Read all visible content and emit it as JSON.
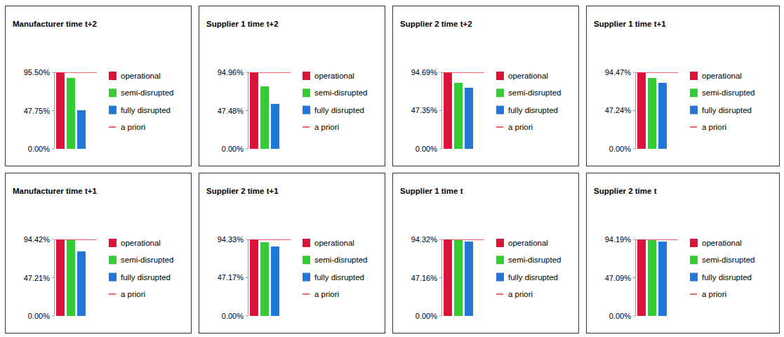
{
  "chart_data": [
    {
      "type": "bar",
      "title": "Manufacturer time t+2",
      "categories": [
        null
      ],
      "series": [
        {
          "name": "operational",
          "color": "#dc143c",
          "values": [
            95.5
          ]
        },
        {
          "name": "semi-disrupted",
          "color": "#33cc33",
          "values": [
            88.5
          ]
        },
        {
          "name": "fully disrupted",
          "color": "#1f78d6",
          "values": [
            48.2
          ]
        },
        {
          "name": "a priori",
          "color": "#e8333f",
          "type": "line",
          "line_style": "solid",
          "values": [
            95.5
          ]
        }
      ],
      "ylim": [
        0,
        95.5
      ],
      "yticks": [
        {
          "value": 0,
          "label": "0.00%"
        },
        {
          "value": 47.75,
          "label": "47.75%"
        },
        {
          "value": 95.5,
          "label": "95.50%"
        }
      ],
      "legend": "right",
      "tick_labels": "y"
    },
    {
      "type": "bar",
      "title": "Supplier 1  time t+2",
      "categories": [
        null
      ],
      "series": [
        {
          "name": "operational",
          "color": "#dc143c",
          "values": [
            94.96
          ]
        },
        {
          "name": "semi-disrupted",
          "color": "#33cc33",
          "values": [
            77.5
          ]
        },
        {
          "name": "fully disrupted",
          "color": "#1f78d6",
          "values": [
            55.8
          ]
        },
        {
          "name": "a priori",
          "color": "#e8333f",
          "type": "line",
          "line_style": "solid",
          "values": [
            94.96
          ]
        }
      ],
      "ylim": [
        0,
        94.96
      ],
      "yticks": [
        {
          "value": 0,
          "label": "0.00%"
        },
        {
          "value": 47.48,
          "label": "47.48%"
        },
        {
          "value": 94.96,
          "label": "94.96%"
        }
      ],
      "legend": "right",
      "tick_labels": "y"
    },
    {
      "type": "bar",
      "title": "Supplier 2  time t+2",
      "categories": [
        null
      ],
      "series": [
        {
          "name": "operational",
          "color": "#dc143c",
          "values": [
            94.69
          ]
        },
        {
          "name": "semi-disrupted",
          "color": "#33cc33",
          "values": [
            81.7
          ]
        },
        {
          "name": "fully disrupted",
          "color": "#1f78d6",
          "values": [
            75.6
          ]
        },
        {
          "name": "a priori",
          "color": "#e8333f",
          "type": "line",
          "line_style": "solid",
          "values": [
            94.69
          ]
        }
      ],
      "ylim": [
        0,
        94.69
      ],
      "yticks": [
        {
          "value": 0,
          "label": "0.00%"
        },
        {
          "value": 47.35,
          "label": "47.35%"
        },
        {
          "value": 94.69,
          "label": "94.69%"
        }
      ],
      "legend": "right",
      "tick_labels": "y"
    },
    {
      "type": "bar",
      "title": "Supplier 1  time t+1",
      "categories": [
        null
      ],
      "series": [
        {
          "name": "operational",
          "color": "#dc143c",
          "values": [
            94.47
          ]
        },
        {
          "name": "semi-disrupted",
          "color": "#33cc33",
          "values": [
            87.5
          ]
        },
        {
          "name": "fully disrupted",
          "color": "#1f78d6",
          "values": [
            81.5
          ]
        },
        {
          "name": "a priori",
          "color": "#e8333f",
          "type": "line",
          "line_style": "solid",
          "values": [
            94.47
          ]
        }
      ],
      "ylim": [
        0,
        94.47
      ],
      "yticks": [
        {
          "value": 0,
          "label": "0.00%"
        },
        {
          "value": 47.24,
          "label": "47.24%"
        },
        {
          "value": 94.47,
          "label": "94.47%"
        }
      ],
      "legend": "right",
      "tick_labels": "y"
    },
    {
      "type": "bar",
      "title": "Manufacturer time t+1",
      "categories": [
        null
      ],
      "series": [
        {
          "name": "operational",
          "color": "#dc143c",
          "values": [
            94.42
          ]
        },
        {
          "name": "semi-disrupted",
          "color": "#33cc33",
          "values": [
            94.0
          ]
        },
        {
          "name": "fully disrupted",
          "color": "#1f78d6",
          "values": [
            79.6
          ]
        },
        {
          "name": "a priori",
          "color": "#e8333f",
          "type": "line",
          "line_style": "solid",
          "values": [
            94.42
          ]
        }
      ],
      "ylim": [
        0,
        94.42
      ],
      "yticks": [
        {
          "value": 0,
          "label": "0.00%"
        },
        {
          "value": 47.21,
          "label": "47.21%"
        },
        {
          "value": 94.42,
          "label": "94.42%"
        }
      ],
      "legend": "right",
      "tick_labels": "y"
    },
    {
      "type": "bar",
      "title": "Supplier 2  time t+1",
      "categories": [
        null
      ],
      "series": [
        {
          "name": "operational",
          "color": "#dc143c",
          "values": [
            94.33
          ]
        },
        {
          "name": "semi-disrupted",
          "color": "#33cc33",
          "values": [
            90.8
          ]
        },
        {
          "name": "fully disrupted",
          "color": "#1f78d6",
          "values": [
            85.6
          ]
        },
        {
          "name": "a priori",
          "color": "#e8333f",
          "type": "line",
          "line_style": "solid",
          "values": [
            94.33
          ]
        }
      ],
      "ylim": [
        0,
        94.33
      ],
      "yticks": [
        {
          "value": 0,
          "label": "0.00%"
        },
        {
          "value": 47.17,
          "label": "47.17%"
        },
        {
          "value": 94.33,
          "label": "94.33%"
        }
      ],
      "legend": "right",
      "tick_labels": "y"
    },
    {
      "type": "bar",
      "title": "Supplier 1  time t",
      "categories": [
        null
      ],
      "series": [
        {
          "name": "operational",
          "color": "#dc143c",
          "values": [
            94.32
          ]
        },
        {
          "name": "semi-disrupted",
          "color": "#33cc33",
          "values": [
            93.4
          ]
        },
        {
          "name": "fully disrupted",
          "color": "#1f78d6",
          "values": [
            91.7
          ]
        },
        {
          "name": "a priori",
          "color": "#e8333f",
          "type": "line",
          "line_style": "solid",
          "values": [
            94.32
          ]
        }
      ],
      "ylim": [
        0,
        94.32
      ],
      "yticks": [
        {
          "value": 0,
          "label": "0.00%"
        },
        {
          "value": 47.16,
          "label": "47.16%"
        },
        {
          "value": 94.32,
          "label": "94.32%"
        }
      ],
      "legend": "right",
      "tick_labels": "y"
    },
    {
      "type": "bar",
      "title": "Supplier 2  time t",
      "categories": [
        null
      ],
      "series": [
        {
          "name": "operational",
          "color": "#dc143c",
          "values": [
            94.19
          ]
        },
        {
          "name": "semi-disrupted",
          "color": "#33cc33",
          "values": [
            93.3
          ]
        },
        {
          "name": "fully disrupted",
          "color": "#1f78d6",
          "values": [
            91.5
          ]
        },
        {
          "name": "a priori",
          "color": "#e8333f",
          "type": "line",
          "line_style": "solid",
          "values": [
            94.19
          ]
        }
      ],
      "ylim": [
        0,
        94.19
      ],
      "yticks": [
        {
          "value": 0,
          "label": "0.00%"
        },
        {
          "value": 47.09,
          "label": "47.09%"
        },
        {
          "value": 94.19,
          "label": "94.19%"
        }
      ],
      "legend": "right",
      "tick_labels": "y"
    }
  ]
}
